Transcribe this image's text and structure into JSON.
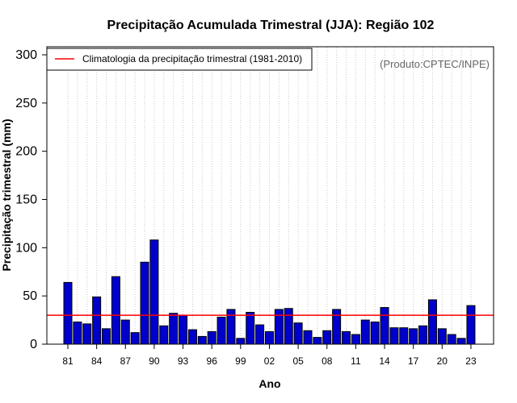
{
  "chart_data": {
    "type": "bar",
    "title": "Precipitação Acumulada Trimestral (JJA): Região 102",
    "xlabel": "Ano",
    "ylabel": "Precipitação trimestral (mm)",
    "ylim": [
      0,
      300
    ],
    "yticks": [
      0,
      50,
      100,
      150,
      200,
      250,
      300
    ],
    "x_tick_labels": [
      "81",
      "84",
      "87",
      "90",
      "93",
      "96",
      "99",
      "02",
      "05",
      "08",
      "11",
      "14",
      "17",
      "20",
      "23"
    ],
    "x_tick_every": 3,
    "grid": "vertical dotted, one per year",
    "years": [
      1981,
      1982,
      1983,
      1984,
      1985,
      1986,
      1987,
      1988,
      1989,
      1990,
      1991,
      1992,
      1993,
      1994,
      1995,
      1996,
      1997,
      1998,
      1999,
      2000,
      2001,
      2002,
      2003,
      2004,
      2005,
      2006,
      2007,
      2008,
      2009,
      2010,
      2011,
      2012,
      2013,
      2014,
      2015,
      2016,
      2017,
      2018,
      2019,
      2020,
      2021,
      2022,
      2023
    ],
    "values": [
      64,
      23,
      21,
      49,
      16,
      70,
      25,
      12,
      85,
      108,
      19,
      32,
      30,
      15,
      8,
      13,
      28,
      36,
      6,
      33,
      20,
      13,
      36,
      37,
      22,
      14,
      7,
      14,
      36,
      13,
      10,
      25,
      23,
      38,
      17,
      17,
      16,
      19,
      46,
      16,
      10,
      6,
      40
    ],
    "climatology": 30,
    "legend": {
      "position": "top-left",
      "entries": [
        {
          "label": "Climatologia da precipitação trimestral (1981-2010)",
          "color": "#ff0000"
        }
      ]
    },
    "credit": "(Produto:CPTEC/INPE)",
    "colors": {
      "bar": "#0000cc",
      "bar_edge": "#000000",
      "climatology_line": "#ff0000",
      "grid": "#c8c8c8"
    }
  }
}
